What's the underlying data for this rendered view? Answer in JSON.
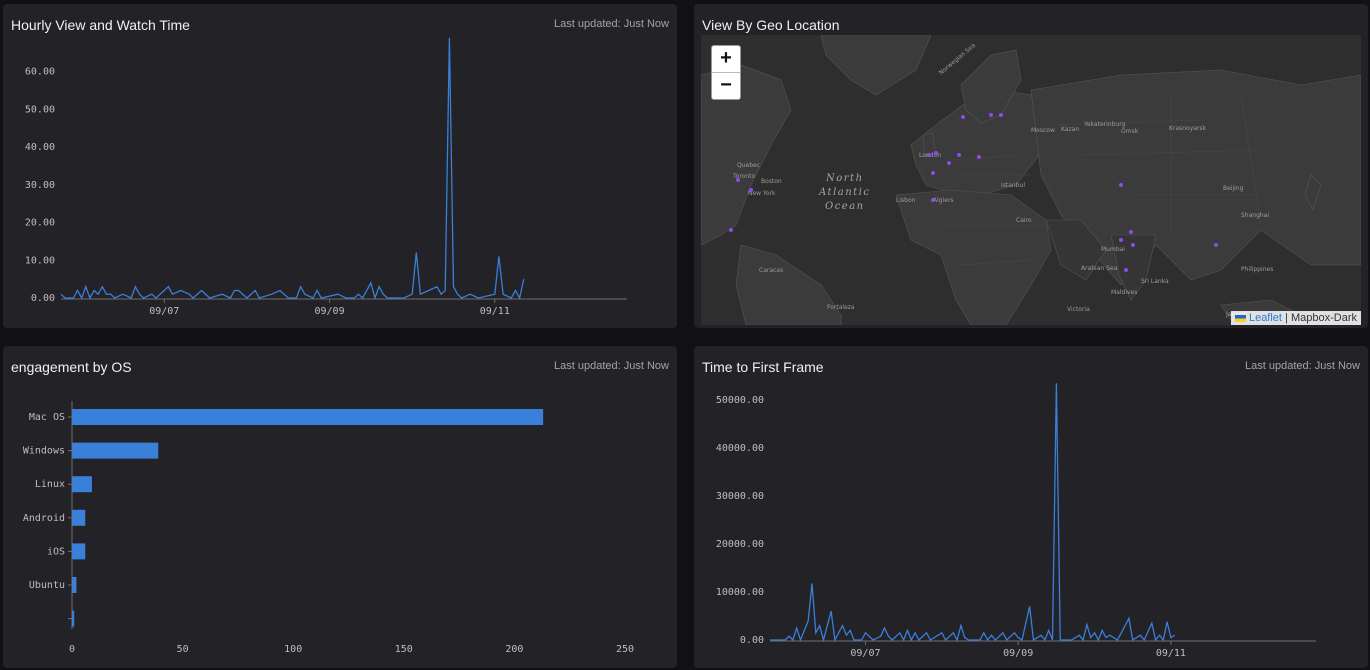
{
  "panels": {
    "hourly": {
      "title": "Hourly View and Watch Time",
      "updated": "Last updated: Just Now"
    },
    "geo": {
      "title": "View By Geo Location",
      "zoom_in": "+",
      "zoom_out": "−",
      "attribution_link": "Leaflet",
      "attribution_sep": " | ",
      "attribution_tiles": "Mapbox-Dark",
      "map_labels": {
        "ocean": [
          "North",
          "Atlantic",
          "Ocean"
        ],
        "places": [
          "Quebec",
          "Toronto",
          "Boston",
          "New York",
          "Lisbon",
          "Algiers",
          "London",
          "Moscow",
          "Kazan",
          "Yekaterinburg",
          "Omsk",
          "Krasnoyarsk",
          "Istanbul",
          "Cairo",
          "Mumbai",
          "Beijing",
          "Shanghai",
          "Jakarta",
          "Fortaleza",
          "Caracas",
          "Victoria",
          "Maldives",
          "Sri Lanka",
          "Philippines",
          "Norwegian Sea",
          "Arabian Sea"
        ]
      }
    },
    "os": {
      "title": "engagement by OS",
      "updated": "Last updated: Just Now"
    },
    "ttff": {
      "title": "Time to First Frame",
      "updated": "Last updated: Just Now"
    }
  },
  "colors": {
    "series": "#3a7fd8",
    "panel": "#232227",
    "background": "#111115",
    "axis_text": "#bdbdc3",
    "map_dot": "#8a4cf0"
  },
  "chart_data": [
    {
      "type": "line",
      "title": "",
      "x_ticks": [
        "09/07",
        "09/09",
        "09/11"
      ],
      "y_ticks": [
        "0.00",
        "10.00",
        "20.00",
        "30.00",
        "40.00",
        "50.00",
        "60.00"
      ],
      "ylim": [
        0,
        70
      ],
      "x_range_days": [
        5.75,
        12.6
      ],
      "series": [
        {
          "points": [
            [
              5.75,
              1
            ],
            [
              5.8,
              0
            ],
            [
              5.9,
              0
            ],
            [
              5.95,
              2
            ],
            [
              6.0,
              0
            ],
            [
              6.05,
              3
            ],
            [
              6.1,
              0
            ],
            [
              6.15,
              2
            ],
            [
              6.2,
              1
            ],
            [
              6.25,
              3
            ],
            [
              6.3,
              1
            ],
            [
              6.35,
              1
            ],
            [
              6.4,
              0
            ],
            [
              6.5,
              1
            ],
            [
              6.6,
              0
            ],
            [
              6.65,
              3
            ],
            [
              6.7,
              1
            ],
            [
              6.75,
              0
            ],
            [
              6.85,
              1
            ],
            [
              6.9,
              0
            ],
            [
              7.05,
              3
            ],
            [
              7.1,
              1
            ],
            [
              7.2,
              2
            ],
            [
              7.3,
              1
            ],
            [
              7.35,
              0
            ],
            [
              7.45,
              2
            ],
            [
              7.55,
              0
            ],
            [
              7.7,
              1
            ],
            [
              7.8,
              0
            ],
            [
              7.85,
              2
            ],
            [
              7.9,
              2
            ],
            [
              8.0,
              0
            ],
            [
              8.1,
              2
            ],
            [
              8.15,
              0
            ],
            [
              8.3,
              1
            ],
            [
              8.4,
              2
            ],
            [
              8.5,
              0
            ],
            [
              8.6,
              0
            ],
            [
              8.65,
              3
            ],
            [
              8.7,
              1
            ],
            [
              8.8,
              0
            ],
            [
              8.85,
              2
            ],
            [
              8.9,
              0
            ],
            [
              9.1,
              1
            ],
            [
              9.2,
              0
            ],
            [
              9.3,
              0
            ],
            [
              9.35,
              1
            ],
            [
              9.4,
              0
            ],
            [
              9.5,
              4
            ],
            [
              9.55,
              0
            ],
            [
              9.6,
              3
            ],
            [
              9.65,
              1
            ],
            [
              9.7,
              0
            ],
            [
              9.8,
              0
            ],
            [
              9.9,
              0
            ],
            [
              10.0,
              1
            ],
            [
              10.05,
              12
            ],
            [
              10.1,
              1
            ],
            [
              10.2,
              2
            ],
            [
              10.3,
              3
            ],
            [
              10.35,
              1
            ],
            [
              10.4,
              2
            ],
            [
              10.45,
              69
            ],
            [
              10.5,
              3
            ],
            [
              10.55,
              1
            ],
            [
              10.6,
              0
            ],
            [
              10.7,
              1
            ],
            [
              10.8,
              0
            ],
            [
              11.0,
              1
            ],
            [
              11.05,
              11
            ],
            [
              11.1,
              1
            ],
            [
              11.2,
              0
            ],
            [
              11.25,
              2
            ],
            [
              11.3,
              0
            ],
            [
              11.35,
              5
            ]
          ]
        }
      ]
    },
    {
      "type": "bar",
      "orientation": "horizontal",
      "title": "",
      "categories": [
        "Mac OS",
        "Windows",
        "Linux",
        "Android",
        "iOS",
        "Ubuntu",
        ""
      ],
      "values": [
        213,
        39,
        9,
        6,
        6,
        2,
        1
      ],
      "x_ticks": [
        "0",
        "50",
        "100",
        "150",
        "200",
        "250"
      ],
      "xlim": [
        0,
        250
      ]
    },
    {
      "type": "line",
      "title": "",
      "x_ticks": [
        "09/07",
        "09/09",
        "09/11"
      ],
      "y_ticks": [
        "0.00",
        "10000.00",
        "20000.00",
        "30000.00",
        "40000.00",
        "50000.00"
      ],
      "ylim": [
        0,
        55000
      ],
      "x_range_days": [
        5.75,
        12.9
      ],
      "series": [
        {
          "points": [
            [
              5.75,
              0
            ],
            [
              5.95,
              0
            ],
            [
              6.0,
              800
            ],
            [
              6.05,
              0
            ],
            [
              6.1,
              2500
            ],
            [
              6.15,
              0
            ],
            [
              6.25,
              4000
            ],
            [
              6.3,
              11800
            ],
            [
              6.35,
              1500
            ],
            [
              6.4,
              3000
            ],
            [
              6.45,
              0
            ],
            [
              6.55,
              6000
            ],
            [
              6.6,
              0
            ],
            [
              6.7,
              3000
            ],
            [
              6.75,
              1000
            ],
            [
              6.8,
              2000
            ],
            [
              6.85,
              0
            ],
            [
              6.95,
              0
            ],
            [
              7.0,
              1500
            ],
            [
              7.1,
              0
            ],
            [
              7.2,
              800
            ],
            [
              7.25,
              2500
            ],
            [
              7.3,
              800
            ],
            [
              7.35,
              0
            ],
            [
              7.45,
              1500
            ],
            [
              7.5,
              0
            ],
            [
              7.55,
              2000
            ],
            [
              7.6,
              0
            ],
            [
              7.65,
              1500
            ],
            [
              7.7,
              0
            ],
            [
              7.8,
              1500
            ],
            [
              7.85,
              0
            ],
            [
              8.0,
              1500
            ],
            [
              8.05,
              0
            ],
            [
              8.15,
              1500
            ],
            [
              8.2,
              0
            ],
            [
              8.25,
              3000
            ],
            [
              8.3,
              500
            ],
            [
              8.35,
              0
            ],
            [
              8.5,
              0
            ],
            [
              8.55,
              1500
            ],
            [
              8.6,
              0
            ],
            [
              8.65,
              1000
            ],
            [
              8.7,
              0
            ],
            [
              8.8,
              1500
            ],
            [
              8.85,
              0
            ],
            [
              8.95,
              1500
            ],
            [
              9.0,
              500
            ],
            [
              9.05,
              0
            ],
            [
              9.15,
              7000
            ],
            [
              9.2,
              0
            ],
            [
              9.3,
              1000
            ],
            [
              9.35,
              0
            ],
            [
              9.4,
              2000
            ],
            [
              9.45,
              0
            ],
            [
              9.5,
              53500
            ],
            [
              9.55,
              0
            ],
            [
              9.7,
              0
            ],
            [
              9.8,
              1000
            ],
            [
              9.85,
              0
            ],
            [
              9.9,
              3200
            ],
            [
              9.95,
              500
            ],
            [
              10.0,
              1500
            ],
            [
              10.05,
              0
            ],
            [
              10.1,
              2000
            ],
            [
              10.15,
              500
            ],
            [
              10.2,
              1000
            ],
            [
              10.3,
              0
            ],
            [
              10.45,
              4500
            ],
            [
              10.5,
              0
            ],
            [
              10.6,
              1000
            ],
            [
              10.65,
              0
            ],
            [
              10.75,
              3500
            ],
            [
              10.8,
              0
            ],
            [
              10.85,
              1000
            ],
            [
              10.9,
              0
            ],
            [
              10.95,
              3800
            ],
            [
              11.0,
              500
            ],
            [
              11.05,
              1000
            ]
          ]
        }
      ]
    }
  ]
}
